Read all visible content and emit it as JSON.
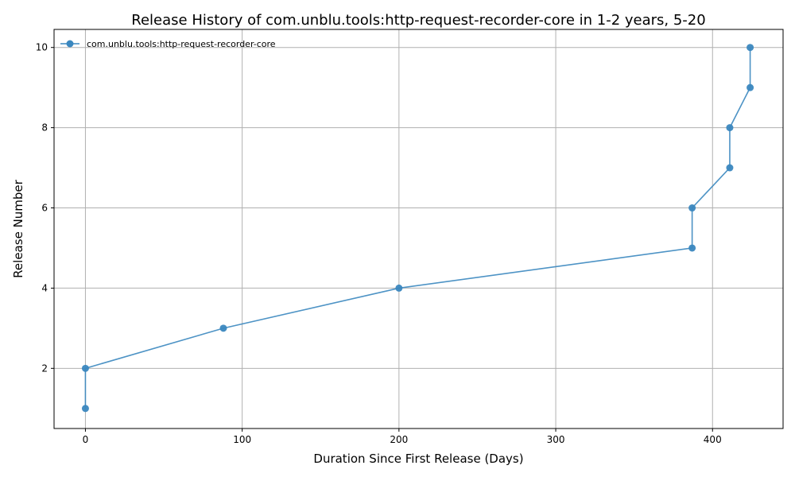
{
  "chart_data": {
    "type": "line",
    "title": "Release History of com.unblu.tools:http-request-recorder-core in 1-2 years, 5-20",
    "xlabel": "Duration Since First Release (Days)",
    "ylabel": "Release Number",
    "xlim": [
      -20,
      445
    ],
    "ylim": [
      0.5,
      10.45
    ],
    "xticks": [
      0,
      100,
      200,
      300,
      400
    ],
    "yticks": [
      2,
      4,
      6,
      8,
      10
    ],
    "grid": true,
    "legend_position": "top-left",
    "series": [
      {
        "name": "com.unblu.tools:http-request-recorder-core",
        "color": "#3a87bf",
        "marker": "circle",
        "x": [
          0,
          0,
          88,
          200,
          387,
          387,
          411,
          411,
          424,
          424
        ],
        "y": [
          1,
          2,
          3,
          4,
          5,
          6,
          7,
          8,
          9,
          10
        ]
      }
    ]
  }
}
